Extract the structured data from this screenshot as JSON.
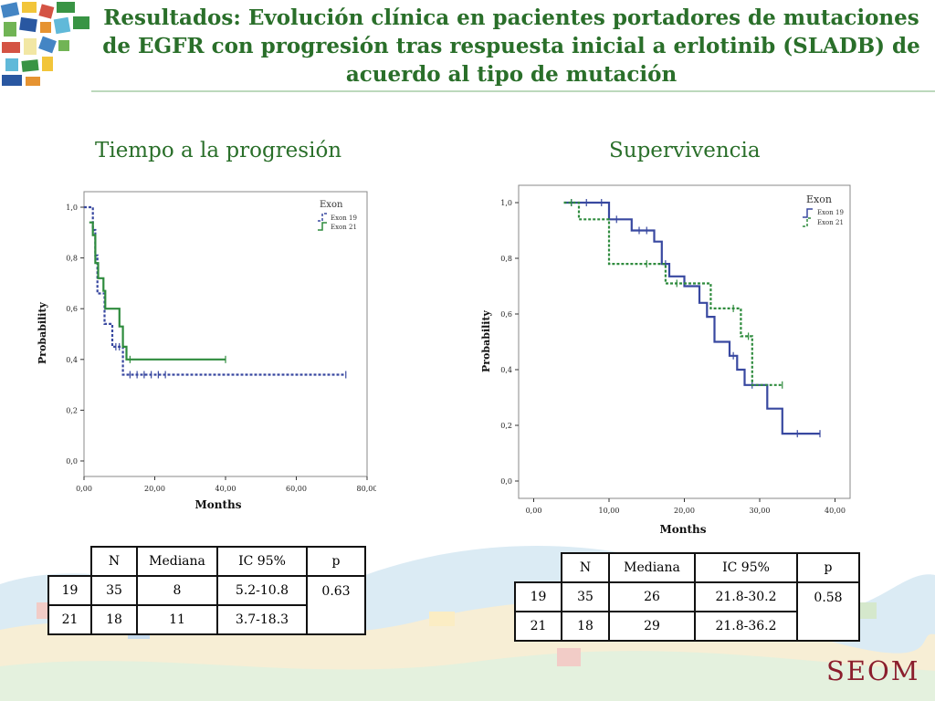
{
  "slide": {
    "title": "Resultados: Evolución clínica en pacientes portadores de mutaciones de EGFR con progresión tras respuesta inicial a erlotinib (SLADB) de acuerdo al tipo de mutación",
    "brand": "SEOM"
  },
  "colors": {
    "exon19": "#3848a0",
    "exon21": "#2e8b3d",
    "title": "#2a6f2a",
    "brand": "#8b1e2d"
  },
  "left": {
    "heading": "Tiempo a la progresión",
    "table": {
      "headers": [
        "",
        "N",
        "Mediana",
        "IC 95%",
        "p"
      ],
      "rows": [
        [
          "19",
          "35",
          "8",
          "5.2-10.8",
          "0.63"
        ],
        [
          "21",
          "18",
          "11",
          "3.7-18.3",
          ""
        ]
      ]
    }
  },
  "right": {
    "heading": "Supervivencia",
    "table": {
      "headers": [
        "",
        "N",
        "Mediana",
        "IC 95%",
        "p"
      ],
      "rows": [
        [
          "19",
          "35",
          "26",
          "21.8-30.2",
          "0.58"
        ],
        [
          "21",
          "18",
          "29",
          "21.8-36.2",
          ""
        ]
      ]
    }
  },
  "chart_data": [
    {
      "type": "line",
      "subtype": "kaplan-meier",
      "xlabel": "Months",
      "ylabel": "Probability",
      "xlim": [
        0,
        80
      ],
      "ylim": [
        0,
        1
      ],
      "xticks": [
        "0,00",
        "20,00",
        "40,00",
        "60,00",
        "80,00"
      ],
      "yticks": [
        "0,0",
        "0,2",
        "0,4",
        "0,6",
        "0,8",
        "1,0"
      ],
      "legend": {
        "title": "Exon",
        "position": "top-right"
      },
      "series": [
        {
          "name": "Exon 19",
          "style": "dashed",
          "color": "#3848a0",
          "steps": [
            [
              0,
              1.0
            ],
            [
              2.5,
              1.0
            ],
            [
              2.5,
              0.91
            ],
            [
              3.2,
              0.91
            ],
            [
              3.2,
              0.81
            ],
            [
              3.8,
              0.81
            ],
            [
              3.8,
              0.66
            ],
            [
              5.8,
              0.66
            ],
            [
              5.8,
              0.54
            ],
            [
              8,
              0.54
            ],
            [
              8,
              0.45
            ],
            [
              11,
              0.45
            ],
            [
              11,
              0.34
            ],
            [
              74,
              0.34
            ]
          ],
          "censored": [
            [
              9,
              0.45
            ],
            [
              10,
              0.45
            ],
            [
              13,
              0.34
            ],
            [
              15,
              0.34
            ],
            [
              17,
              0.34
            ],
            [
              19,
              0.34
            ],
            [
              21,
              0.34
            ],
            [
              23,
              0.34
            ],
            [
              74,
              0.34
            ]
          ]
        },
        {
          "name": "Exon 21",
          "style": "solid",
          "color": "#2e8b3d",
          "steps": [
            [
              1.5,
              0.94
            ],
            [
              2.5,
              0.94
            ],
            [
              2.5,
              0.89
            ],
            [
              3.2,
              0.89
            ],
            [
              3.2,
              0.78
            ],
            [
              4,
              0.78
            ],
            [
              4,
              0.72
            ],
            [
              5.5,
              0.72
            ],
            [
              5.5,
              0.67
            ],
            [
              6,
              0.67
            ],
            [
              6,
              0.6
            ],
            [
              10,
              0.6
            ],
            [
              10,
              0.53
            ],
            [
              11,
              0.53
            ],
            [
              11,
              0.45
            ],
            [
              12,
              0.45
            ],
            [
              12,
              0.4
            ],
            [
              40,
              0.4
            ]
          ],
          "censored": [
            [
              13,
              0.4
            ],
            [
              40,
              0.4
            ]
          ]
        }
      ]
    },
    {
      "type": "line",
      "subtype": "kaplan-meier",
      "xlabel": "Months",
      "ylabel": "Probability",
      "xlim": [
        -2,
        42
      ],
      "ylim": [
        0,
        1
      ],
      "xticks": [
        "0,00",
        "10,00",
        "20,00",
        "30,00",
        "40,00"
      ],
      "yticks": [
        "0,0",
        "0,2",
        "0,4",
        "0,6",
        "0,8",
        "1,0"
      ],
      "legend": {
        "title": "Exon",
        "position": "top-right"
      },
      "series": [
        {
          "name": "Exon 19",
          "style": "solid",
          "color": "#3848a0",
          "steps": [
            [
              4,
              1.0
            ],
            [
              10,
              1.0
            ],
            [
              10,
              0.94
            ],
            [
              13,
              0.94
            ],
            [
              13,
              0.9
            ],
            [
              16,
              0.9
            ],
            [
              16,
              0.86
            ],
            [
              17,
              0.86
            ],
            [
              17,
              0.78
            ],
            [
              18,
              0.78
            ],
            [
              18,
              0.735
            ],
            [
              20,
              0.735
            ],
            [
              20,
              0.7
            ],
            [
              22,
              0.7
            ],
            [
              22,
              0.64
            ],
            [
              23,
              0.64
            ],
            [
              23,
              0.59
            ],
            [
              24,
              0.59
            ],
            [
              24,
              0.5
            ],
            [
              26,
              0.5
            ],
            [
              26,
              0.45
            ],
            [
              27,
              0.45
            ],
            [
              27,
              0.4
            ],
            [
              28,
              0.4
            ],
            [
              28,
              0.345
            ],
            [
              31,
              0.345
            ],
            [
              31,
              0.26
            ],
            [
              33,
              0.26
            ],
            [
              33,
              0.17
            ],
            [
              38,
              0.17
            ]
          ],
          "censored": [
            [
              5,
              1.0
            ],
            [
              7,
              1.0
            ],
            [
              9,
              1.0
            ],
            [
              11,
              0.94
            ],
            [
              14,
              0.9
            ],
            [
              15,
              0.9
            ],
            [
              17.5,
              0.78
            ],
            [
              26.5,
              0.45
            ],
            [
              29,
              0.345
            ],
            [
              35,
              0.17
            ],
            [
              38,
              0.17
            ]
          ]
        },
        {
          "name": "Exon 21",
          "style": "dashed",
          "color": "#2e8b3d",
          "steps": [
            [
              4,
              1.0
            ],
            [
              6,
              1.0
            ],
            [
              6,
              0.94
            ],
            [
              10,
              0.94
            ],
            [
              10,
              0.78
            ],
            [
              17.5,
              0.78
            ],
            [
              17.5,
              0.71
            ],
            [
              23.5,
              0.71
            ],
            [
              23.5,
              0.62
            ],
            [
              27.5,
              0.62
            ],
            [
              27.5,
              0.52
            ],
            [
              29,
              0.52
            ],
            [
              29,
              0.345
            ],
            [
              33,
              0.345
            ]
          ],
          "censored": [
            [
              5,
              1.0
            ],
            [
              15,
              0.78
            ],
            [
              19,
              0.71
            ],
            [
              26.5,
              0.62
            ],
            [
              28.5,
              0.52
            ],
            [
              33,
              0.345
            ]
          ]
        }
      ]
    }
  ]
}
